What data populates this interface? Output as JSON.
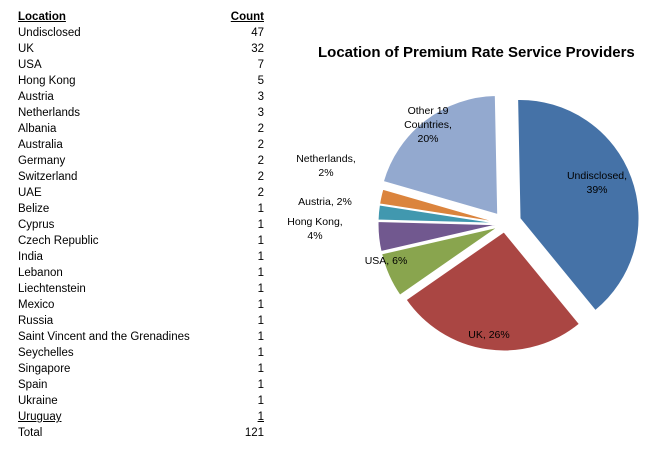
{
  "table": {
    "header": {
      "location": "Location",
      "count": "Count"
    },
    "rows": [
      {
        "location": "Undisclosed",
        "count": "47"
      },
      {
        "location": "UK",
        "count": "32"
      },
      {
        "location": "USA",
        "count": "7"
      },
      {
        "location": "Hong Kong",
        "count": "5"
      },
      {
        "location": "Austria",
        "count": "3"
      },
      {
        "location": "Netherlands",
        "count": "3"
      },
      {
        "location": "Albania",
        "count": "2"
      },
      {
        "location": "Australia",
        "count": "2"
      },
      {
        "location": "Germany",
        "count": "2"
      },
      {
        "location": "Switzerland",
        "count": "2"
      },
      {
        "location": "UAE",
        "count": "2"
      },
      {
        "location": "Belize",
        "count": "1"
      },
      {
        "location": "Cyprus",
        "count": "1"
      },
      {
        "location": "Czech Republic",
        "count": "1"
      },
      {
        "location": "India",
        "count": "1"
      },
      {
        "location": "Lebanon",
        "count": "1"
      },
      {
        "location": "Liechtenstein",
        "count": "1"
      },
      {
        "location": "Mexico",
        "count": "1"
      },
      {
        "location": "Russia",
        "count": "1"
      },
      {
        "location": "Saint Vincent and the Grenadines",
        "count": "1"
      },
      {
        "location": "Seychelles",
        "count": "1"
      },
      {
        "location": "Singapore",
        "count": "1"
      },
      {
        "location": "Spain",
        "count": "1"
      },
      {
        "location": "Ukraine",
        "count": "1"
      },
      {
        "location": "Uruguay",
        "count": "1"
      }
    ],
    "total": {
      "location": "Total",
      "count": "121"
    }
  },
  "chart_data": {
    "type": "pie",
    "title": "Location of Premium Rate Service Providers",
    "slices": [
      {
        "label": [
          "Undisclosed,",
          "39%"
        ],
        "value": 39,
        "color": "#4572A7"
      },
      {
        "label": [
          "UK, 26%"
        ],
        "value": 26,
        "color": "#AA4643"
      },
      {
        "label": [
          "USA, 6%"
        ],
        "value": 6,
        "color": "#89A54E"
      },
      {
        "label": [
          "Hong Kong,",
          "4%"
        ],
        "value": 4,
        "color": "#71588F"
      },
      {
        "label": [
          "Austria, 2%"
        ],
        "value": 2,
        "color": "#4198AF"
      },
      {
        "label": [
          "Netherlands,",
          "2%"
        ],
        "value": 2,
        "color": "#DB843D"
      },
      {
        "label": [
          "Other 19",
          "Countries,",
          "20%"
        ],
        "value": 20,
        "color": "#93A9CF"
      }
    ]
  }
}
